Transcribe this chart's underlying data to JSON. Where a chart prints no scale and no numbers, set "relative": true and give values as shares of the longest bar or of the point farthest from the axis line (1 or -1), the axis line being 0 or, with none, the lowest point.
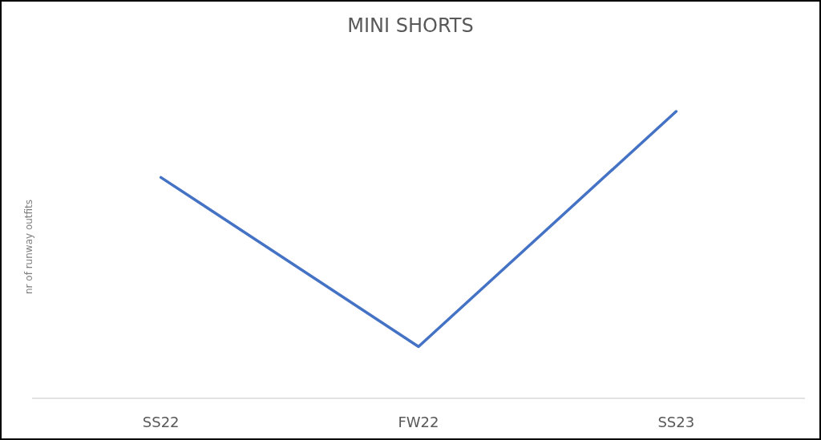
{
  "chart_data": {
    "type": "line",
    "title": "MINI SHORTS",
    "ylabel": "nr of runway outfits",
    "categories": [
      "SS22",
      "FW22",
      "SS23"
    ],
    "relative": true,
    "series": [
      {
        "color": "#4472c4",
        "values": [
          0.77,
          0.18,
          1
        ]
      }
    ],
    "marker": "none",
    "line_style": "solid"
  }
}
